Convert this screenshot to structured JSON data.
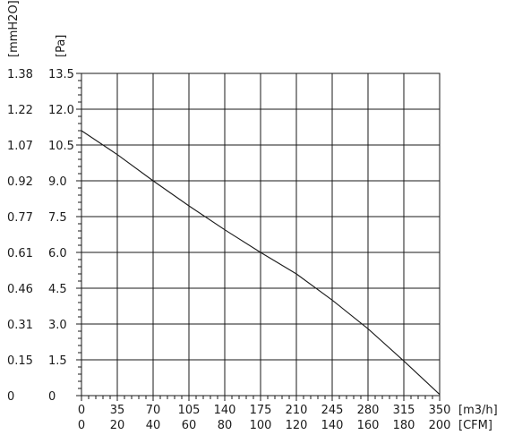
{
  "chart_data": {
    "type": "line",
    "title": "",
    "y_unit_primary": "[Pa]",
    "y_unit_secondary": "[mmH2O]",
    "x_unit_primary": "[m3/h]",
    "x_unit_secondary": "[CFM]",
    "xlim": [
      0,
      350
    ],
    "ylim": [
      0,
      13.5
    ],
    "x_ticks": [
      "0",
      "35",
      "70",
      "105",
      "140",
      "175",
      "210",
      "245",
      "280",
      "315",
      "350"
    ],
    "x_ticks_cfm": [
      "0",
      "20",
      "40",
      "60",
      "80",
      "100",
      "120",
      "140",
      "160",
      "180",
      "200"
    ],
    "y_ticks": [
      "0",
      "1.5",
      "3.0",
      "4.5",
      "6.0",
      "7.5",
      "9.0",
      "10.5",
      "12.0",
      "13.5"
    ],
    "y_ticks_mmh2o": [
      "0",
      "0.15",
      "0.31",
      "0.46",
      "0.61",
      "0.77",
      "0.92",
      "1.07",
      "1.22",
      "1.38"
    ],
    "grid": true,
    "minor_ticks": true,
    "line_color": "#1a1a1a",
    "series": [
      {
        "x": [
          0,
          35,
          70,
          105,
          140,
          175,
          210,
          245,
          280,
          315,
          350
        ],
        "y": [
          11.1,
          10.1,
          9.0,
          7.95,
          6.95,
          6.0,
          5.1,
          4.0,
          2.8,
          1.45,
          0.05
        ]
      }
    ]
  }
}
